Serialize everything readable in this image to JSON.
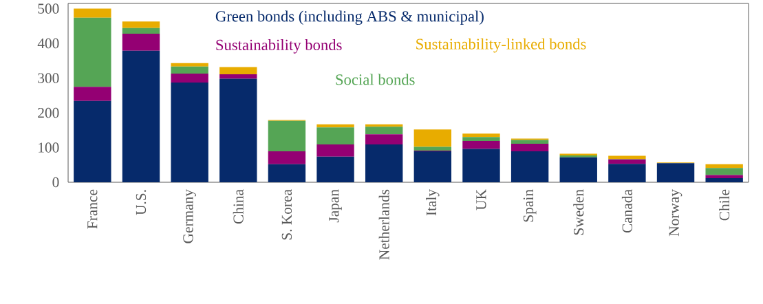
{
  "chart_data": {
    "type": "bar",
    "stacked": true,
    "legend": "top",
    "categories": [
      "France",
      "U.S.",
      "Germany",
      "China",
      "S. Korea",
      "Japan",
      "Netherlands",
      "Italy",
      "UK",
      "Spain",
      "Sweden",
      "Canada",
      "Norway",
      "Chile"
    ],
    "series": [
      {
        "name": "Green bonds (including ABS & municipal)",
        "color": "#062a6b",
        "values": [
          234,
          379,
          287,
          298,
          52,
          74,
          109,
          89,
          96,
          89,
          72,
          53,
          55,
          12
        ]
      },
      {
        "name": "Sustainability bonds",
        "color": "#940073",
        "values": [
          41,
          49,
          26,
          13,
          37,
          35,
          29,
          2,
          23,
          22,
          0,
          13,
          0,
          9
        ]
      },
      {
        "name": "Social bonds",
        "color": "#55a555",
        "values": [
          199,
          16,
          20,
          0,
          88,
          49,
          22,
          11,
          11,
          11,
          5,
          1,
          0,
          20
        ]
      },
      {
        "name": "Sustainability-linked bonds",
        "color": "#e8ac00",
        "values": [
          26,
          19,
          10,
          21,
          2,
          9,
          7,
          50,
          10,
          4,
          5,
          9,
          2,
          11
        ]
      }
    ],
    "ylim": [
      0,
      515
    ],
    "yticks": [
      0,
      100,
      200,
      300,
      400,
      500
    ],
    "grid": false
  }
}
